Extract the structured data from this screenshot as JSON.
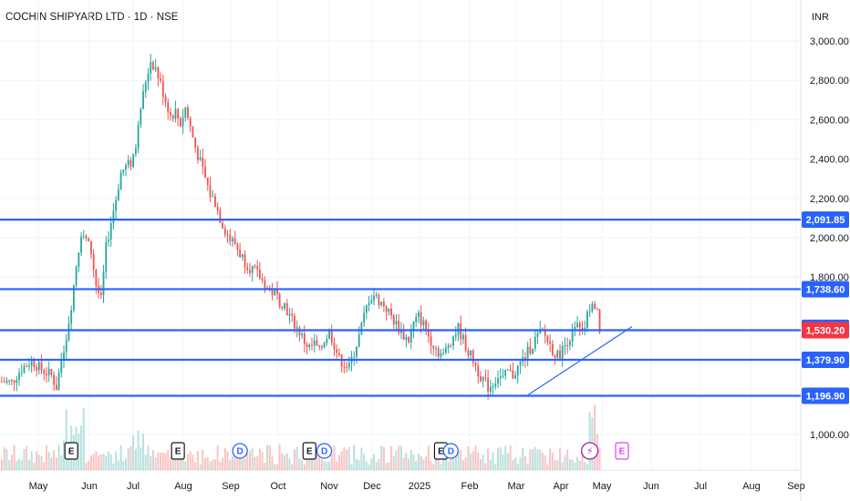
{
  "header": {
    "symbol": "COCHIN SHIPYARD LTD · 1D · NSE",
    "currency": "INR"
  },
  "chart_data": {
    "type": "candlestick",
    "title": "COCHIN SHIPYARD LTD · 1D · NSE",
    "ylim": [
      880,
      3020
    ],
    "y_ticks": [
      1000,
      1800,
      2000,
      2200,
      2400,
      2600,
      2800,
      3000
    ],
    "y_tick_labels": [
      "1,000.00",
      "1,800.00",
      "2,000.00",
      "2,200.00",
      "2,400.00",
      "2,600.00",
      "2,800.00",
      "3,000.00"
    ],
    "x_labels": [
      "May",
      "Jun",
      "Jul",
      "Aug",
      "Sep",
      "Oct",
      "Nov",
      "Dec",
      "2025",
      "Feb",
      "Mar",
      "Apr",
      "May",
      "Jun",
      "Jul",
      "Aug",
      "Sep"
    ],
    "price_path": [
      [
        0,
        1270
      ],
      [
        4,
        1265
      ],
      [
        8,
        1335
      ],
      [
        12,
        1375
      ],
      [
        16,
        1330
      ],
      [
        20,
        1300
      ],
      [
        22,
        1240
      ],
      [
        24,
        1380
      ],
      [
        26,
        1500
      ],
      [
        28,
        1660
      ],
      [
        30,
        1860
      ],
      [
        32,
        2030
      ],
      [
        34,
        1990
      ],
      [
        36,
        1930
      ],
      [
        38,
        1760
      ],
      [
        40,
        1680
      ],
      [
        42,
        1950
      ],
      [
        44,
        2080
      ],
      [
        46,
        2200
      ],
      [
        48,
        2330
      ],
      [
        50,
        2360
      ],
      [
        52,
        2380
      ],
      [
        54,
        2460
      ],
      [
        56,
        2660
      ],
      [
        58,
        2800
      ],
      [
        60,
        2900
      ],
      [
        62,
        2860
      ],
      [
        64,
        2780
      ],
      [
        66,
        2700
      ],
      [
        68,
        2620
      ],
      [
        70,
        2640
      ],
      [
        72,
        2580
      ],
      [
        74,
        2660
      ],
      [
        76,
        2560
      ],
      [
        78,
        2460
      ],
      [
        80,
        2380
      ],
      [
        82,
        2300
      ],
      [
        84,
        2220
      ],
      [
        86,
        2180
      ],
      [
        88,
        2100
      ],
      [
        90,
        2040
      ],
      [
        92,
        1990
      ],
      [
        94,
        1970
      ],
      [
        96,
        1920
      ],
      [
        98,
        1880
      ],
      [
        100,
        1850
      ],
      [
        102,
        1830
      ],
      [
        104,
        1800
      ],
      [
        106,
        1760
      ],
      [
        108,
        1730
      ],
      [
        110,
        1720
      ],
      [
        112,
        1680
      ],
      [
        114,
        1660
      ],
      [
        116,
        1600
      ],
      [
        118,
        1560
      ],
      [
        120,
        1520
      ],
      [
        122,
        1470
      ],
      [
        124,
        1440
      ],
      [
        126,
        1460
      ],
      [
        128,
        1420
      ],
      [
        130,
        1480
      ],
      [
        132,
        1520
      ],
      [
        134,
        1460
      ],
      [
        136,
        1380
      ],
      [
        138,
        1360
      ],
      [
        140,
        1340
      ],
      [
        142,
        1420
      ],
      [
        144,
        1500
      ],
      [
        146,
        1600
      ],
      [
        148,
        1690
      ],
      [
        150,
        1710
      ],
      [
        152,
        1680
      ],
      [
        154,
        1660
      ],
      [
        156,
        1620
      ],
      [
        158,
        1580
      ],
      [
        160,
        1540
      ],
      [
        162,
        1500
      ],
      [
        164,
        1480
      ],
      [
        166,
        1560
      ],
      [
        168,
        1600
      ],
      [
        170,
        1560
      ],
      [
        172,
        1500
      ],
      [
        174,
        1460
      ],
      [
        176,
        1420
      ],
      [
        178,
        1400
      ],
      [
        180,
        1460
      ],
      [
        182,
        1500
      ],
      [
        184,
        1540
      ],
      [
        186,
        1480
      ],
      [
        188,
        1420
      ],
      [
        190,
        1380
      ],
      [
        192,
        1320
      ],
      [
        194,
        1280
      ],
      [
        196,
        1240
      ],
      [
        198,
        1260
      ],
      [
        200,
        1300
      ],
      [
        202,
        1280
      ],
      [
        204,
        1320
      ],
      [
        206,
        1300
      ],
      [
        208,
        1340
      ],
      [
        210,
        1380
      ],
      [
        212,
        1420
      ],
      [
        214,
        1460
      ],
      [
        216,
        1500
      ],
      [
        218,
        1520
      ],
      [
        220,
        1480
      ],
      [
        222,
        1430
      ],
      [
        224,
        1400
      ],
      [
        226,
        1430
      ],
      [
        228,
        1480
      ],
      [
        230,
        1510
      ],
      [
        232,
        1550
      ],
      [
        234,
        1500
      ],
      [
        236,
        1600
      ],
      [
        238,
        1690
      ],
      [
        240,
        1650
      ],
      [
        241,
        1530
      ]
    ],
    "price_lines": [
      {
        "name": "level-2091",
        "value": 2091.85,
        "label": "2,091.85"
      },
      {
        "name": "level-1738",
        "value": 1738.6,
        "label": "1,738.60"
      },
      {
        "name": "level-1530",
        "value": 1530.2,
        "label": "1,530.20"
      },
      {
        "name": "level-1379",
        "value": 1379.9,
        "label": "1,379.90"
      },
      {
        "name": "level-1196",
        "value": 1196.9,
        "label": "1,196.90"
      }
    ],
    "price_tags": [
      {
        "value": 2091.85,
        "label": "2,091.85",
        "color": "#2962ff"
      },
      {
        "value": 1738.6,
        "label": "1,738.60",
        "color": "#2962ff"
      },
      {
        "value": 1542.35,
        "label": "1,542.35",
        "color": "#2962ff"
      },
      {
        "value": 1530.2,
        "label": "1,530.20",
        "color": "#f23645"
      },
      {
        "value": 1379.9,
        "label": "1,379.90",
        "color": "#2962ff"
      },
      {
        "value": 1196.9,
        "label": "1,196.90",
        "color": "#2962ff"
      }
    ],
    "trendline": {
      "start": [
        212,
        1200
      ],
      "end": [
        254,
        1548
      ]
    },
    "event_markers": [
      {
        "bar": 28,
        "type": "E",
        "color": "#131722"
      },
      {
        "bar": 71,
        "type": "E",
        "color": "#131722"
      },
      {
        "bar": 96,
        "type": "D",
        "color": "#2962ff"
      },
      {
        "bar": 124,
        "type": "E",
        "color": "#131722"
      },
      {
        "bar": 130,
        "type": "D",
        "color": "#2962ff"
      },
      {
        "bar": 177,
        "type": "E",
        "color": "#131722"
      },
      {
        "bar": 181,
        "type": "D",
        "color": "#2962ff"
      },
      {
        "bar": 237,
        "type": "⚡",
        "color": "#9c27b0"
      },
      {
        "bar": 250,
        "type": "E",
        "color": "#e040fb"
      }
    ],
    "colors": {
      "up": "#26a69a",
      "down": "#ef5350",
      "line": "#2962ff",
      "last": "#f23645"
    }
  }
}
